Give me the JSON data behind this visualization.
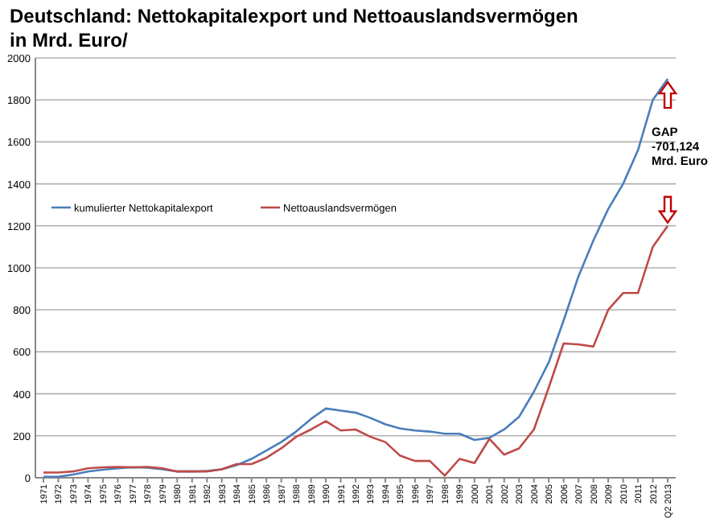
{
  "chart_data": {
    "type": "line",
    "title": "Deutschland:  Nettokapitalexport  und  Nettoauslandsvermögen",
    "subtitle": "in Mrd. Euro/",
    "categories": [
      "1971",
      "1972",
      "1973",
      "1974",
      "1975",
      "1976",
      "1977",
      "1978",
      "1979",
      "1980",
      "1981",
      "1982",
      "1983",
      "1984",
      "1985",
      "1986",
      "1987",
      "1988",
      "1989",
      "1990",
      "1991",
      "1992",
      "1993",
      "1994",
      "1995",
      "1996",
      "1997",
      "1998",
      "1999",
      "2000",
      "2001",
      "2002",
      "2003",
      "2004",
      "2005",
      "2006",
      "2007",
      "2008",
      "2009",
      "2010",
      "2011",
      "2012",
      "Q2 2013"
    ],
    "series": [
      {
        "name": "kumulierter Nettokapitalexport",
        "color": "#4a7ebb",
        "values": [
          5,
          5,
          15,
          30,
          38,
          45,
          50,
          48,
          40,
          30,
          30,
          32,
          40,
          60,
          90,
          130,
          170,
          220,
          280,
          330,
          320,
          310,
          285,
          255,
          235,
          225,
          220,
          210,
          210,
          180,
          190,
          230,
          290,
          410,
          550,
          750,
          960,
          1130,
          1280,
          1400,
          1560,
          1800,
          1900
        ]
      },
      {
        "name": "Nettoauslandsvermögen",
        "color": "#be4b48",
        "values": [
          25,
          25,
          30,
          45,
          50,
          52,
          50,
          52,
          45,
          30,
          30,
          30,
          40,
          65,
          65,
          95,
          140,
          195,
          230,
          270,
          225,
          230,
          195,
          170,
          105,
          80,
          80,
          10,
          90,
          70,
          185,
          110,
          140,
          230,
          430,
          640,
          635,
          625,
          800,
          880,
          880,
          1100,
          1200
        ]
      }
    ],
    "ylim": [
      0,
      2000
    ],
    "yticks": [
      0,
      200,
      400,
      600,
      800,
      1000,
      1200,
      1400,
      1600,
      1800,
      2000
    ],
    "grid": "y",
    "legend": "left",
    "annotations": [
      "GAP\n-701,124\nMrd. Euro"
    ]
  }
}
